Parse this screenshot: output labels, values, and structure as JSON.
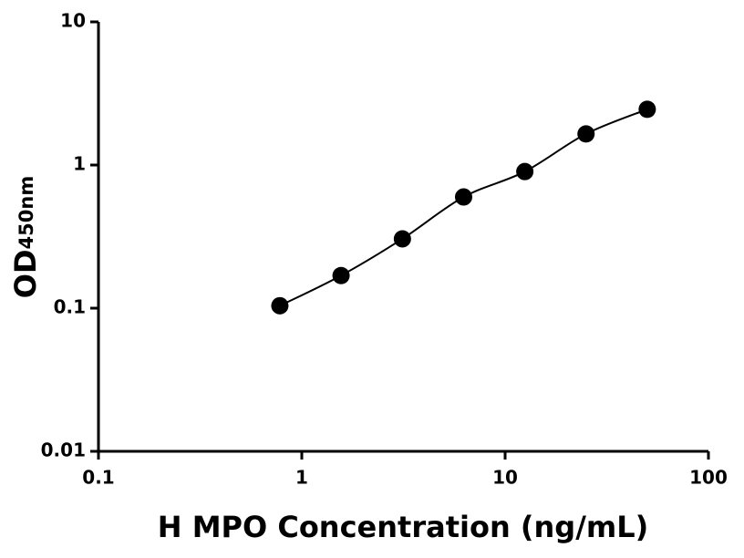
{
  "chart_data": {
    "type": "scatter",
    "x_label": "H MPO Concentration (ng/mL)",
    "y_label": {
      "text": "OD",
      "subscript": "450nm"
    },
    "x": [
      0.78,
      1.56,
      3.125,
      6.25,
      12.5,
      25,
      50
    ],
    "y": [
      0.104,
      0.169,
      0.305,
      0.598,
      0.9,
      1.65,
      2.45
    ],
    "color": "#000000",
    "fit_line": true,
    "xscale": "log",
    "yscale": "log",
    "xlim": [
      0.1,
      100
    ],
    "ylim": [
      0.01,
      10
    ],
    "xticks": [
      0.1,
      1,
      10,
      100
    ],
    "yticks": [
      0.01,
      0.1,
      1,
      10
    ]
  }
}
